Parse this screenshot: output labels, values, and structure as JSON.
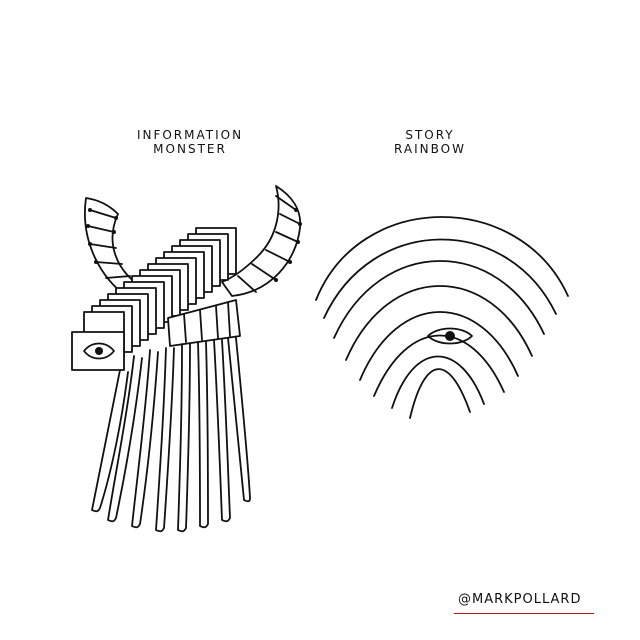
{
  "illustrations": {
    "left": {
      "caption_line1": "INFORMATION",
      "caption_line2": "MONSTER"
    },
    "right": {
      "caption_line1": "STORY",
      "caption_line2": "RAINBOW"
    }
  },
  "credit": {
    "handle": "@MARKPOLLARD",
    "underline_color": "#b01818"
  },
  "colors": {
    "ink": "#111111",
    "paper": "#ffffff"
  }
}
